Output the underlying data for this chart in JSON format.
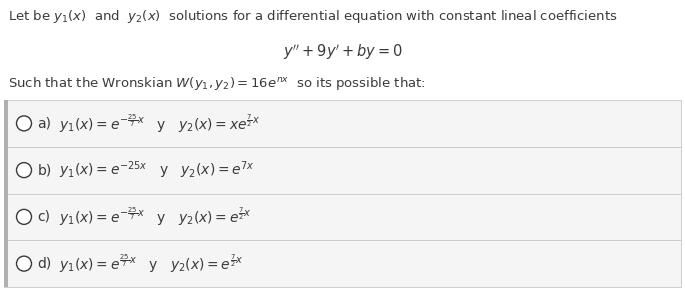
{
  "title_line1": "Let be $y_1(x)$  and  $y_2(x)$  solutions for a differential equation with constant lineal coefficients",
  "equation": "$y'' + 9y' + by = 0$",
  "wronskian_line": "Such that the Wronskian $W(y_1 , y_2) = 16e^{nx}$  so its possible that:",
  "options": [
    {
      "label": "a)",
      "text": "$y_1(x) = e^{-\\frac{25}{7}x}$   y   $y_2(x) = xe^{\\frac{7}{2}x}$"
    },
    {
      "label": "b)",
      "text": "$y_1(x) = e^{-25x}$   y   $y_2(x) = e^{7x}$"
    },
    {
      "label": "c)",
      "text": "$y_1(x) = e^{-\\frac{25}{7}x}$   y   $y_2(x) = e^{\\frac{7}{2}x}$"
    },
    {
      "label": "d)",
      "text": "$y_1(x) = e^{\\frac{25}{7}x}$   y   $y_2(x) = e^{\\frac{7}{2}x}$"
    }
  ],
  "bg_color": "#ffffff",
  "text_color": "#3a3a3a",
  "box_bg": "#f5f5f5",
  "box_border": "#c8c8c8",
  "left_bar_color": "#b0b0b0",
  "circle_color": "#3a3a3a",
  "font_size_title": 9.5,
  "font_size_eq": 10.5,
  "font_size_option": 10.0,
  "fig_width": 6.85,
  "fig_height": 2.91,
  "dpi": 100
}
